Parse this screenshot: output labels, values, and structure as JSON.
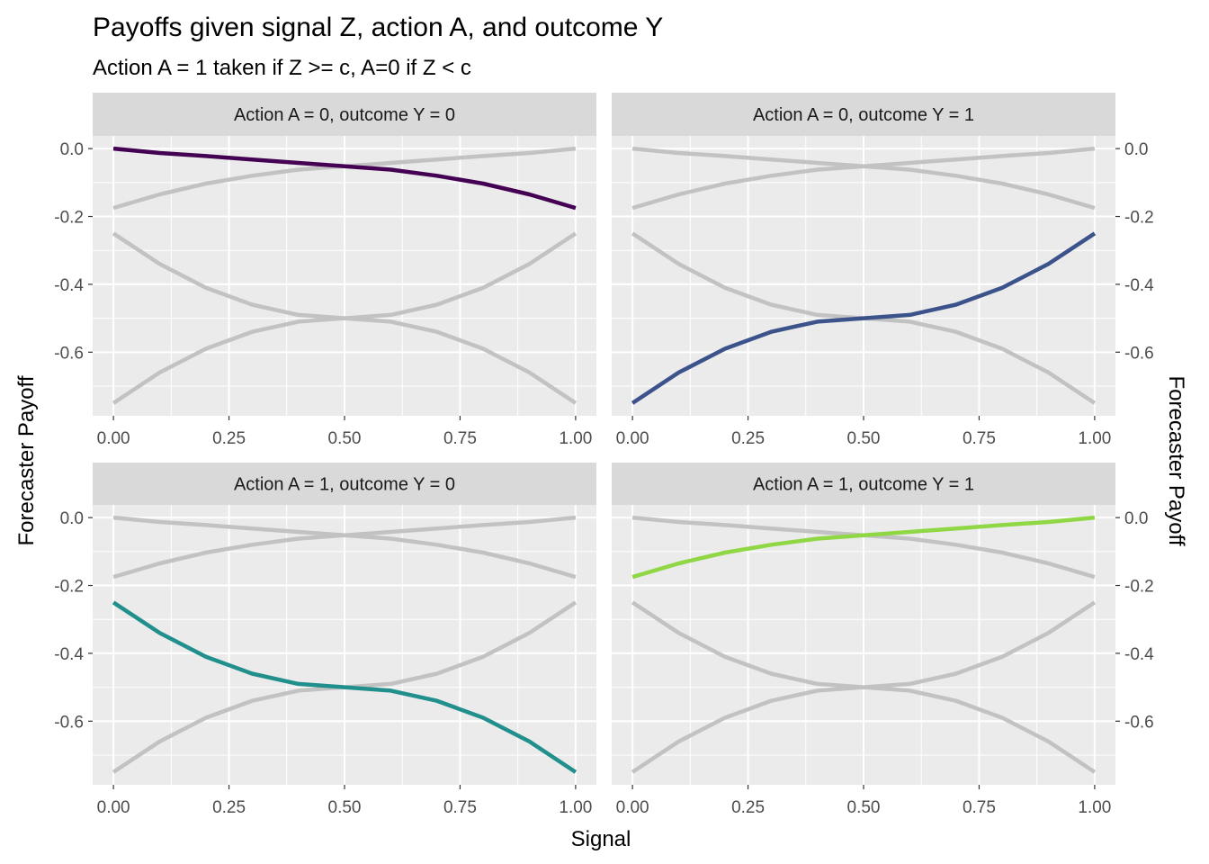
{
  "chart_data": {
    "type": "line",
    "title": "Payoffs given signal Z, action A, and outcome Y",
    "subtitle": "Action A = 1 taken if Z >= c, A=0 if Z < c",
    "xlabel": "Signal",
    "ylabel": "Forecaster Payoff",
    "xlim": [
      -0.045,
      1.045
    ],
    "ylim": [
      -0.7875,
      0.0375
    ],
    "x_ticks": [
      0,
      0.25,
      0.5,
      0.75,
      1
    ],
    "x_tick_labels": [
      "0.00",
      "0.25",
      "0.50",
      "0.75",
      "1.00"
    ],
    "y_ticks": [
      0,
      -0.2,
      -0.4,
      -0.6
    ],
    "y_tick_labels": [
      "0.0",
      "-0.2",
      "-0.4",
      "-0.6"
    ],
    "grid": true,
    "legend": "none",
    "x": [
      0,
      0.1,
      0.2,
      0.3,
      0.4,
      0.5,
      0.6,
      0.7,
      0.8,
      0.9,
      1.0
    ],
    "series": [
      {
        "key": "a0y0",
        "color": "#440154",
        "values": [
          0.0,
          -0.013,
          -0.022,
          -0.032,
          -0.042,
          -0.052,
          -0.062,
          -0.08,
          -0.103,
          -0.135,
          -0.175
        ]
      },
      {
        "key": "a0y1",
        "color": "#3B528B",
        "values": [
          -0.75,
          -0.66,
          -0.59,
          -0.54,
          -0.51,
          -0.5,
          -0.49,
          -0.46,
          -0.41,
          -0.34,
          -0.25
        ]
      },
      {
        "key": "a1y0",
        "color": "#21908C",
        "values": [
          -0.25,
          -0.34,
          -0.41,
          -0.46,
          -0.49,
          -0.5,
          -0.51,
          -0.54,
          -0.59,
          -0.66,
          -0.75
        ]
      },
      {
        "key": "a1y1",
        "color": "#8FD744",
        "values": [
          -0.175,
          -0.135,
          -0.103,
          -0.08,
          -0.062,
          -0.052,
          -0.042,
          -0.032,
          -0.022,
          -0.013,
          0.0
        ]
      }
    ],
    "background_line_color": "#C2C2C2",
    "panels": [
      {
        "label": "Action A = 0, outcome Y = 0",
        "highlight": "a0y0"
      },
      {
        "label": "Action A = 0, outcome Y = 1",
        "highlight": "a0y1"
      },
      {
        "label": "Action A = 1, outcome Y = 0",
        "highlight": "a1y0"
      },
      {
        "label": "Action A = 1, outcome Y = 1",
        "highlight": "a1y1"
      }
    ]
  }
}
